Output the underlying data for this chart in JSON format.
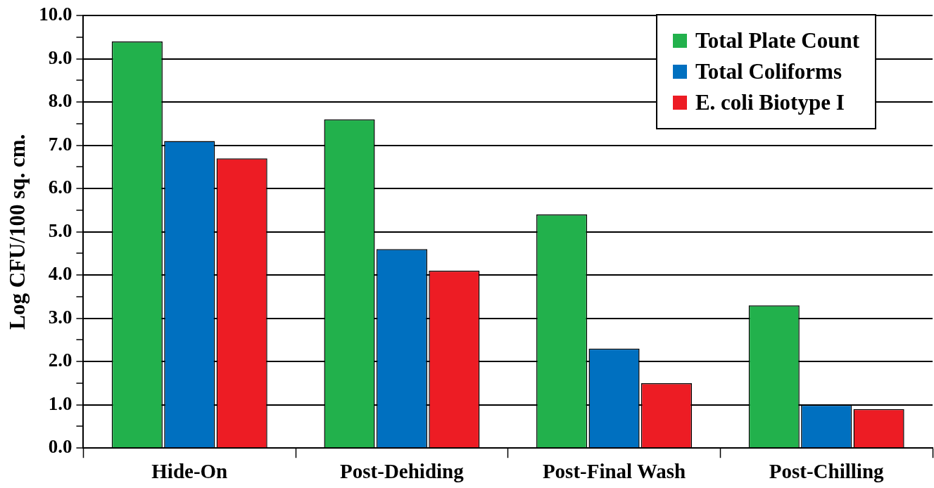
{
  "chart_data": {
    "type": "bar",
    "ylabel": "Log CFU/100 sq. cm.",
    "categories": [
      "Hide-On",
      "Post-Dehiding",
      "Post-Final Wash",
      "Post-Chilling"
    ],
    "series": [
      {
        "name": "Total Plate Count",
        "color": "#22b14c",
        "values": [
          9.4,
          7.6,
          5.4,
          3.3
        ]
      },
      {
        "name": "Total Coliforms",
        "color": "#0070c0",
        "values": [
          7.1,
          4.6,
          2.3,
          1.0
        ]
      },
      {
        "name": "E. coli Biotype I",
        "color": "#ed1c24",
        "values": [
          6.7,
          4.1,
          1.5,
          0.9
        ]
      }
    ],
    "ylim": [
      0,
      10
    ],
    "yticks": [
      {
        "value": 0,
        "label": "0.0"
      },
      {
        "value": 0.5,
        "label": null
      },
      {
        "value": 1,
        "label": "1.0"
      },
      {
        "value": 1.5,
        "label": null
      },
      {
        "value": 2,
        "label": "2.0"
      },
      {
        "value": 2.5,
        "label": null
      },
      {
        "value": 3,
        "label": "3.0"
      },
      {
        "value": 3.5,
        "label": null
      },
      {
        "value": 4,
        "label": "4.0"
      },
      {
        "value": 4.5,
        "label": null
      },
      {
        "value": 5,
        "label": "5.0"
      },
      {
        "value": 5.5,
        "label": null
      },
      {
        "value": 6,
        "label": "6.0"
      },
      {
        "value": 6.5,
        "label": null
      },
      {
        "value": 7,
        "label": "7.0"
      },
      {
        "value": 7.5,
        "label": null
      },
      {
        "value": 8,
        "label": "8.0"
      },
      {
        "value": 8.5,
        "label": null
      },
      {
        "value": 9,
        "label": "9.0"
      },
      {
        "value": 9.5,
        "label": null
      },
      {
        "value": 10,
        "label": "10.0"
      }
    ],
    "grid": "y",
    "legend": "top right"
  }
}
